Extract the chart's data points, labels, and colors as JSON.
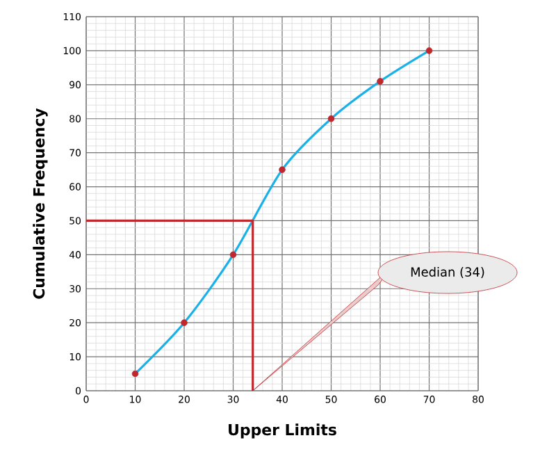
{
  "chart_data": {
    "type": "line",
    "xlabel": "Upper Limits",
    "ylabel": "Cumulative Frequency",
    "xlim": [
      0,
      80
    ],
    "xticks": [
      0,
      10,
      20,
      30,
      40,
      50,
      60,
      70,
      80
    ],
    "ylim": [
      0,
      110
    ],
    "yticks": [
      0,
      10,
      20,
      30,
      40,
      50,
      60,
      70,
      80,
      90,
      100,
      110
    ],
    "grid": true,
    "series": [
      {
        "type": "line",
        "color": "#1ab0e8",
        "x": [
          10,
          20,
          30,
          40,
          50,
          60,
          70
        ],
        "values": [
          5,
          20,
          40,
          65,
          80,
          91,
          100
        ]
      },
      {
        "type": "scatter",
        "marker": "circle",
        "color": "#c0282d",
        "x": [
          10,
          20,
          30,
          40,
          50,
          60,
          70
        ],
        "values": [
          5,
          20,
          40,
          65,
          80,
          91,
          100
        ]
      },
      {
        "type": "line",
        "color": "#c0282d",
        "x": [
          0,
          34,
          34
        ],
        "values": [
          50,
          50,
          0
        ]
      }
    ],
    "annotations": [
      "Median (34)"
    ]
  }
}
